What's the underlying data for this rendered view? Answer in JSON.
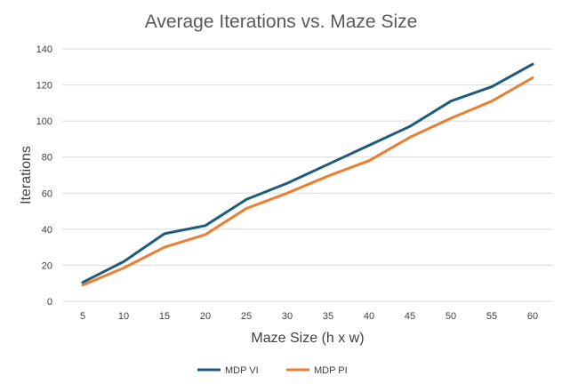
{
  "chart_data": {
    "type": "line",
    "title": "Average Iterations vs. Maze Size",
    "xlabel": "Maze Size (h x w)",
    "ylabel": "Iterations",
    "categories": [
      "5",
      "10",
      "15",
      "20",
      "25",
      "30",
      "35",
      "40",
      "45",
      "50",
      "55",
      "60"
    ],
    "ylim": [
      0,
      140
    ],
    "yticks": [
      "0",
      "20",
      "40",
      "60",
      "80",
      "100",
      "120",
      "140"
    ],
    "grid": true,
    "legend_position": "bottom",
    "series": [
      {
        "name": "MDP VI",
        "color": "#1f5b7a",
        "values": [
          10.5,
          22,
          37.5,
          42,
          56.5,
          65.5,
          76,
          86.5,
          97,
          111,
          119,
          131.5
        ]
      },
      {
        "name": "MDP PI",
        "color": "#ed7d31",
        "values": [
          9,
          18.5,
          30,
          37,
          51.5,
          60,
          69.5,
          78,
          91,
          101.5,
          111,
          124
        ]
      }
    ]
  }
}
